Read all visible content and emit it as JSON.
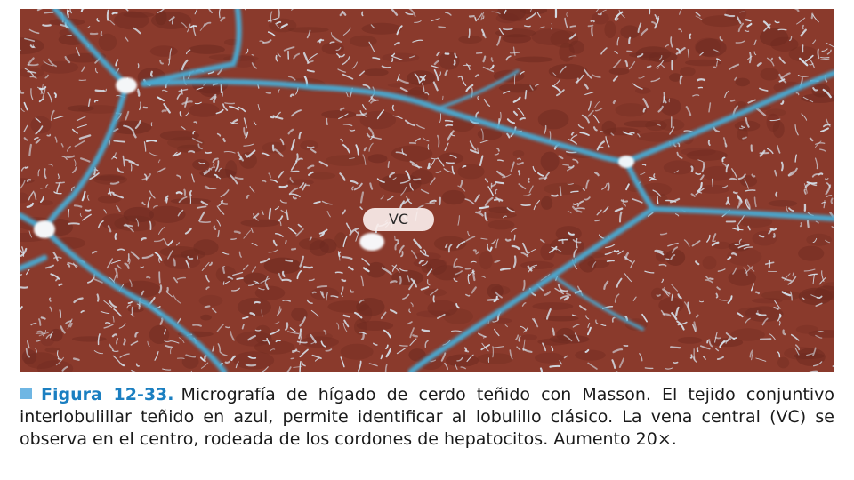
{
  "image": {
    "subject": "liver-lobule-micrograph-masson-stain",
    "colors": {
      "tissue": "#8a3a2c",
      "tissue_dark": "#6e2a20",
      "sinusoid": "#d7e4ee",
      "septa": "#4aa6cf",
      "vein_lumen": "#f6f6f8"
    },
    "label": "VC"
  },
  "caption": {
    "figure_label": "Figura 12-33.",
    "text": "Micrografía de hígado de cerdo teñido con Masson. El tejido conjuntivo interlobulillar teñido en azul, permite identificar al lobulillo clásico. La vena central (VC) se observa en el centro, rodeada de los cordones de hepatocitos. Aumento 20×.",
    "marker_color": "#6fb6e3",
    "label_color": "#1b7fc1"
  }
}
